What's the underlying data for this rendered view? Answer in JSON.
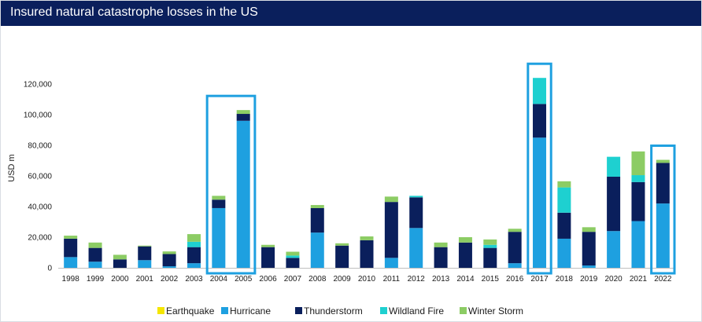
{
  "chart_data": {
    "type": "bar",
    "stacked": true,
    "title": "Insured natural catastrophe losses in the US",
    "ylabel": "USD m",
    "xlabel": "",
    "ylim": [
      0,
      130000
    ],
    "yticks": [
      0,
      20000,
      40000,
      60000,
      80000,
      100000,
      120000
    ],
    "ytick_labels": [
      "0",
      "20,000",
      "40,000",
      "60,000",
      "80,000",
      "100,000",
      "120,000"
    ],
    "categories": [
      "1998",
      "1999",
      "2000",
      "2001",
      "2002",
      "2003",
      "2004",
      "2005",
      "2006",
      "2007",
      "2008",
      "2009",
      "2010",
      "2011",
      "2012",
      "2013",
      "2014",
      "2015",
      "2016",
      "2017",
      "2018",
      "2019",
      "2020",
      "2021",
      "2022"
    ],
    "series": [
      {
        "name": "Earthquake",
        "color": "#f5e600",
        "values": [
          0,
          0,
          0,
          0,
          0,
          0,
          0,
          0,
          0,
          0,
          0,
          0,
          0,
          0,
          0,
          0,
          0,
          0,
          0,
          0,
          0,
          0,
          0,
          0,
          0
        ]
      },
      {
        "name": "Hurricane",
        "color": "#1ea0e0",
        "values": [
          7000,
          4000,
          0,
          5000,
          1000,
          3000,
          39000,
          96000,
          0,
          0,
          23000,
          0,
          0,
          6500,
          26000,
          0,
          0,
          0,
          3000,
          85000,
          19000,
          1500,
          24000,
          30500,
          42000
        ]
      },
      {
        "name": "Thunderstorm",
        "color": "#0a1f5c",
        "values": [
          12000,
          9000,
          5500,
          9000,
          8000,
          10500,
          5500,
          4500,
          13500,
          6500,
          16000,
          14500,
          18000,
          36500,
          20000,
          13500,
          16500,
          13000,
          20500,
          22000,
          17000,
          22000,
          35500,
          25500,
          26500
        ]
      },
      {
        "name": "Wildland Fire",
        "color": "#1ed0d0",
        "values": [
          0,
          0,
          0,
          0,
          0,
          3500,
          0,
          0,
          0,
          1500,
          0,
          0,
          0,
          0,
          1000,
          0,
          0,
          2000,
          0,
          17000,
          16500,
          0,
          13000,
          4500,
          0
        ]
      },
      {
        "name": "Winter Storm",
        "color": "#8ccc64",
        "values": [
          2000,
          3500,
          3000,
          500,
          1700,
          5000,
          2500,
          2500,
          1500,
          2500,
          2000,
          1500,
          2500,
          3500,
          0,
          3000,
          3500,
          3500,
          2000,
          0,
          4000,
          3000,
          0,
          15500,
          2000
        ]
      }
    ],
    "highlighted": [
      "2004",
      "2005",
      "2017",
      "2022"
    ],
    "highlight_groups": [
      [
        "2004",
        "2005"
      ],
      [
        "2017"
      ],
      [
        "2022"
      ]
    ],
    "highlight_color": "#1ea0e0",
    "legend_position": "bottom",
    "grid": false
  }
}
